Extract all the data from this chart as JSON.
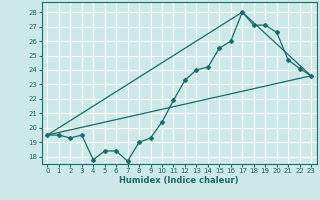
{
  "xlabel": "Humidex (Indice chaleur)",
  "bg_color": "#cce8e8",
  "grid_color": "#ffffff",
  "line_color": "#1a6b6b",
  "xlim": [
    -0.5,
    23.5
  ],
  "ylim": [
    17.5,
    28.7
  ],
  "xticks": [
    0,
    1,
    2,
    3,
    4,
    5,
    6,
    7,
    8,
    9,
    10,
    11,
    12,
    13,
    14,
    15,
    16,
    17,
    18,
    19,
    20,
    21,
    22,
    23
  ],
  "yticks": [
    18,
    19,
    20,
    21,
    22,
    23,
    24,
    25,
    26,
    27,
    28
  ],
  "line1_x": [
    0,
    1,
    2,
    3,
    4,
    5,
    6,
    7,
    8,
    9,
    10,
    11,
    12,
    13,
    14,
    15,
    16,
    17,
    18,
    19,
    20,
    21,
    22,
    23
  ],
  "line1_y": [
    19.5,
    19.5,
    19.3,
    19.5,
    17.8,
    18.4,
    18.4,
    17.7,
    19.0,
    19.3,
    20.4,
    21.9,
    23.3,
    24.0,
    24.2,
    25.5,
    26.0,
    28.0,
    27.1,
    27.1,
    26.6,
    24.7,
    24.1,
    23.6
  ],
  "line2_x": [
    0,
    23
  ],
  "line2_y": [
    19.5,
    23.6
  ],
  "line3_x": [
    0,
    17,
    23
  ],
  "line3_y": [
    19.5,
    28.0,
    23.6
  ]
}
